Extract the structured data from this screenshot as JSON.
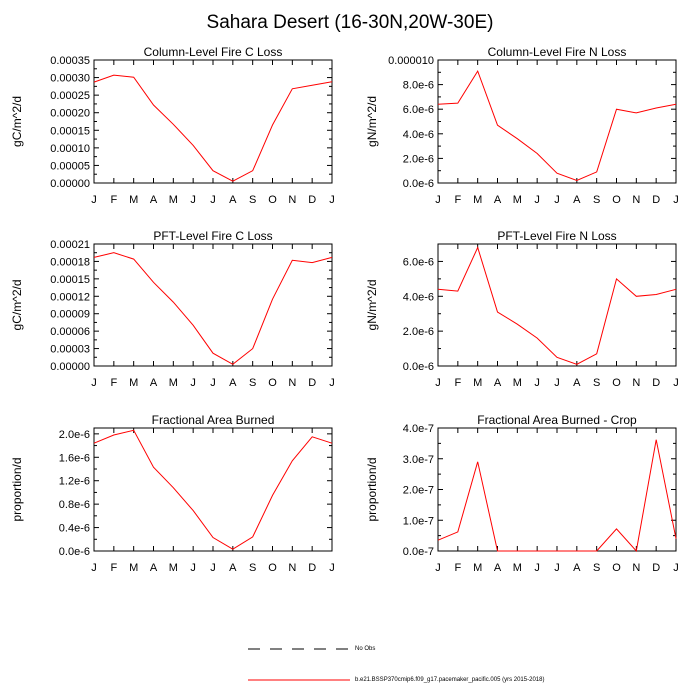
{
  "figure": {
    "title": "Sahara Desert (16-30N,20W-30E)"
  },
  "months": [
    "J",
    "F",
    "M",
    "A",
    "M",
    "J",
    "J",
    "A",
    "S",
    "O",
    "N",
    "D",
    "J"
  ],
  "legend": {
    "obs_label": "No Obs",
    "model_label": "b.e21.BSSP370cmip6.f09_g17.pacemaker_pacific.005 (yrs 2015-2018)",
    "model_color": "#ff0000",
    "obs_color": "#000000"
  },
  "chart_data": [
    {
      "type": "line",
      "title": "Column-Level Fire C Loss",
      "ylabel": "gC/m^2/d",
      "ylim": [
        0,
        0.00035
      ],
      "yticks": [
        "0.00000",
        "0.00005",
        "0.00010",
        "0.00015",
        "0.00020",
        "0.00025",
        "0.00030",
        "0.00035"
      ],
      "ytick_values": [
        0,
        5e-05,
        0.0001,
        0.00015,
        0.0002,
        0.00025,
        0.0003,
        0.00035
      ],
      "series": [
        {
          "values": [
            0.000287,
            0.000307,
            0.000301,
            0.000222,
            0.000167,
            0.000107,
            3.5e-05,
            5e-06,
            3.5e-05,
            0.000165,
            0.000268,
            0.000278,
            0.000288
          ]
        }
      ]
    },
    {
      "type": "line",
      "title": "Column-Level Fire N Loss",
      "ylabel": "gN/m^2/d",
      "ylim": [
        0,
        1e-05
      ],
      "yticks": [
        "0.0e-6",
        "2.0e-6",
        "4.0e-6",
        "6.0e-6",
        "8.0e-6",
        "0.000010"
      ],
      "ytick_values": [
        0,
        2e-06,
        4e-06,
        6e-06,
        8e-06,
        1e-05
      ],
      "series": [
        {
          "values": [
            6.4e-06,
            6.5e-06,
            9.1e-06,
            4.7e-06,
            3.6e-06,
            2.4e-06,
            8e-07,
            2e-07,
            9e-07,
            6e-06,
            5.7e-06,
            6.1e-06,
            6.4e-06
          ]
        }
      ]
    },
    {
      "type": "line",
      "title": "PFT-Level Fire C Loss",
      "ylabel": "gC/m^2/d",
      "ylim": [
        0,
        0.00021
      ],
      "yticks": [
        "0.00000",
        "0.00003",
        "0.00006",
        "0.00009",
        "0.00012",
        "0.00015",
        "0.00018",
        "0.00021"
      ],
      "ytick_values": [
        0,
        3e-05,
        6e-05,
        9e-05,
        0.00012,
        0.00015,
        0.00018,
        0.00021
      ],
      "series": [
        {
          "values": [
            0.000187,
            0.000195,
            0.000184,
            0.000144,
            0.00011,
            7e-05,
            2.2e-05,
            3e-06,
            3e-05,
            0.000115,
            0.000182,
            0.000178,
            0.000187
          ]
        }
      ]
    },
    {
      "type": "line",
      "title": "PFT-Level Fire N Loss",
      "ylabel": "gN/m^2/d",
      "ylim": [
        0,
        7e-06
      ],
      "yticks": [
        "0.0e-6",
        "2.0e-6",
        "4.0e-6",
        "6.0e-6"
      ],
      "ytick_values": [
        0,
        2e-06,
        4e-06,
        6e-06
      ],
      "series": [
        {
          "values": [
            4.4e-06,
            4.3e-06,
            6.8e-06,
            3.1e-06,
            2.4e-06,
            1.6e-06,
            5e-07,
            1e-07,
            7e-07,
            5e-06,
            4e-06,
            4.1e-06,
            4.4e-06
          ]
        }
      ]
    },
    {
      "type": "line",
      "title": "Fractional Area Burned",
      "ylabel": "proportion/d",
      "ylim": [
        0,
        2.1e-06
      ],
      "yticks": [
        "0.0e-6",
        "0.4e-6",
        "0.8e-6",
        "1.2e-6",
        "1.6e-6",
        "2.0e-6"
      ],
      "ytick_values": [
        0,
        4e-07,
        8e-07,
        1.2e-06,
        1.6e-06,
        2e-06
      ],
      "series": [
        {
          "values": [
            1.84e-06,
            1.98e-06,
            2.06e-06,
            1.43e-06,
            1.08e-06,
            6.9e-07,
            2.3e-07,
            3e-08,
            2.4e-07,
            9.5e-07,
            1.54e-06,
            1.95e-06,
            1.84e-06
          ]
        }
      ]
    },
    {
      "type": "line",
      "title": "Fractional Area Burned - Crop",
      "ylabel": "proportion/d",
      "ylim": [
        0,
        4e-07
      ],
      "yticks": [
        "0.0e-7",
        "1.0e-7",
        "2.0e-7",
        "3.0e-7",
        "4.0e-7"
      ],
      "ytick_values": [
        0,
        1e-07,
        2e-07,
        3e-07,
        4e-07
      ],
      "series": [
        {
          "values": [
            3.5e-08,
            6.2e-08,
            2.9e-07,
            0,
            0,
            0,
            0,
            0,
            0,
            7.2e-08,
            0,
            3.62e-07,
            4e-08
          ]
        }
      ]
    }
  ]
}
